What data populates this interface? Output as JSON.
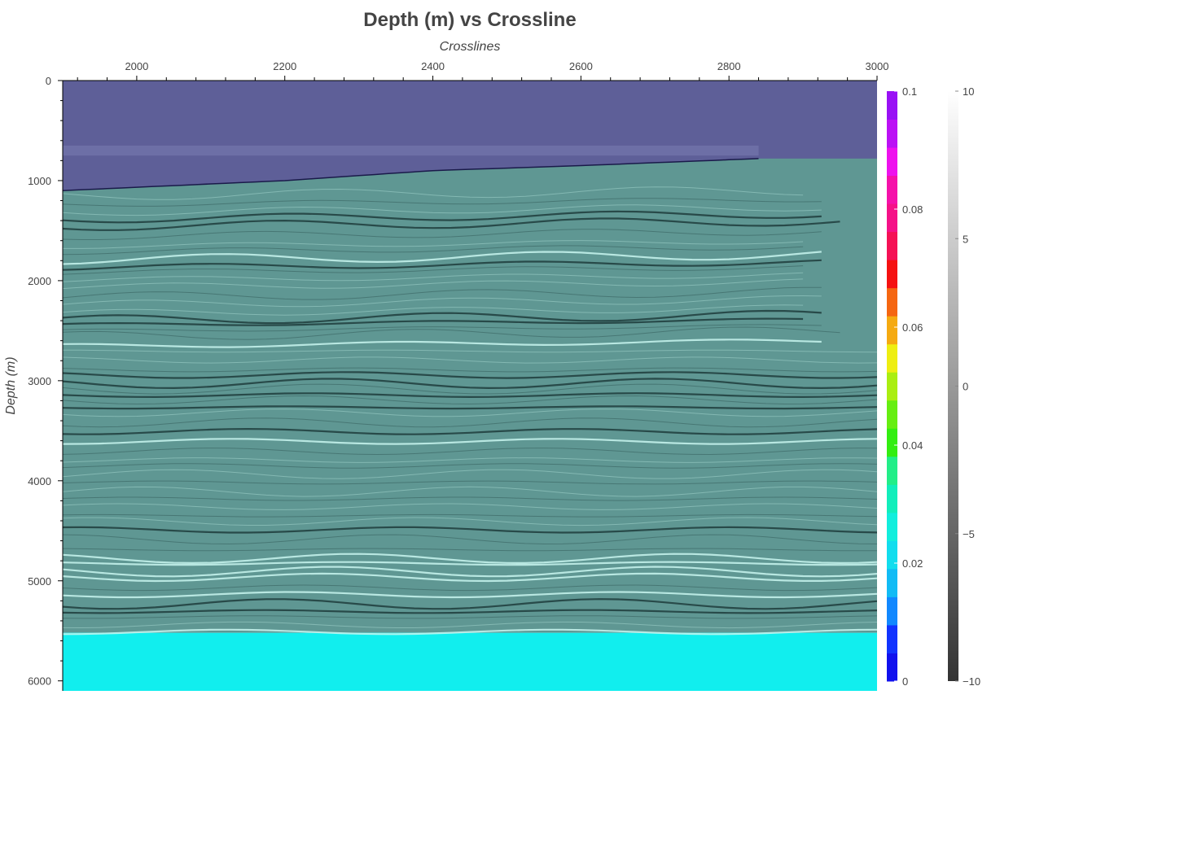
{
  "chart_data": {
    "type": "heatmap",
    "title": "Depth (m) vs Crossline",
    "xlabel": "Crosslines",
    "ylabel": "Depth (m)",
    "x_axis_position": "top",
    "xlim": [
      1900,
      3000
    ],
    "ylim": [
      0,
      6100
    ],
    "y_reversed": true,
    "x_ticks": [
      "2000",
      "2200",
      "2400",
      "2600",
      "2800",
      "3000"
    ],
    "y_ticks": [
      "0",
      "1000",
      "2000",
      "3000",
      "4000",
      "5000",
      "6000"
    ],
    "grid": false,
    "layers": [
      {
        "name": "seismic amplitude",
        "colormap": "grayscale",
        "range": [
          -10,
          10
        ]
      },
      {
        "name": "overlay",
        "colormap": "rainbow",
        "range": [
          0,
          0.1
        ]
      }
    ],
    "regions": {
      "water_bottom_depth": [
        {
          "x": 1900,
          "y": 1100
        },
        {
          "x": 2200,
          "y": 1000
        },
        {
          "x": 2400,
          "y": 900
        },
        {
          "x": 2600,
          "y": 850
        },
        {
          "x": 2840,
          "y": 780
        },
        {
          "x": 3000,
          "y": 780
        }
      ],
      "data_bottom_depth": 5520,
      "model_bottom_depth": 6100
    },
    "colorbar_rainbow": {
      "range": [
        0,
        0.1
      ],
      "ticks": [
        "0",
        "0.02",
        "0.04",
        "0.06",
        "0.08",
        "0.1"
      ],
      "colors": [
        "#1111ee",
        "#1133ff",
        "#1188ff",
        "#11bbf5",
        "#11ddee",
        "#11eedd",
        "#11eebb",
        "#22ee88",
        "#33ee11",
        "#66ee11",
        "#aaee11",
        "#eeee11",
        "#f5aa11",
        "#f56611",
        "#f51111",
        "#f51155",
        "#f51188",
        "#f511aa",
        "#ee11ee",
        "#bb11f5",
        "#9911f5"
      ]
    },
    "colorbar_gray": {
      "range": [
        -10,
        10
      ],
      "ticks": [
        "−10",
        "−5",
        "0",
        "5",
        "10"
      ],
      "colors": [
        "#333333",
        "#ffffff"
      ]
    },
    "colors": {
      "water": "#5e5f98",
      "sediment": "#5f9793",
      "bottom": "#11eeee",
      "reflector_light": "#c8f5ee",
      "reflector_dark": "#1e3c3c"
    }
  }
}
